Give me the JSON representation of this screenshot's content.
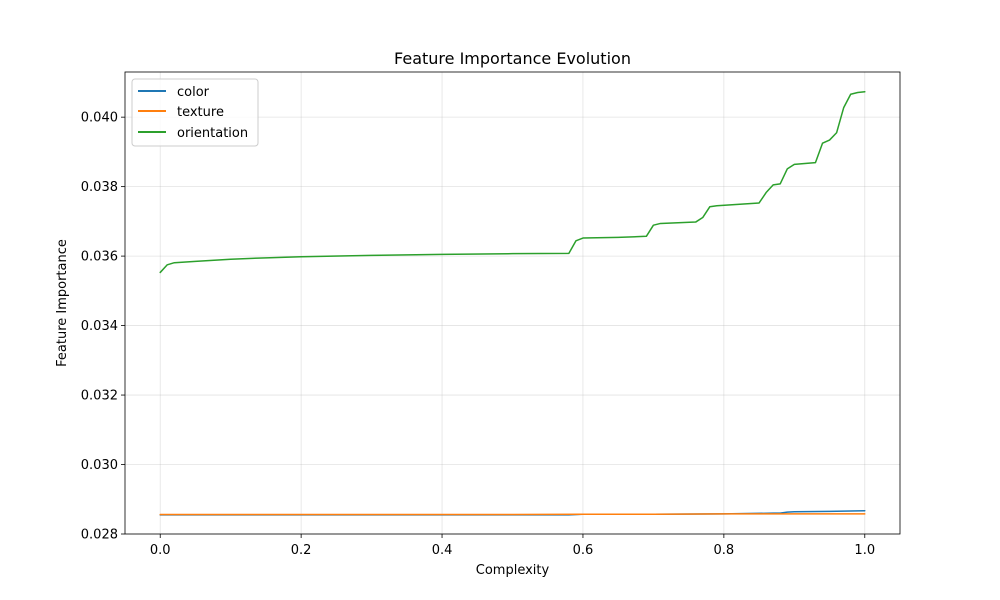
{
  "chart_data": {
    "type": "line",
    "title": "Feature Importance Evolution",
    "xlabel": "Complexity",
    "ylabel": "Feature Importance",
    "xlim": [
      -0.05,
      1.05
    ],
    "ylim": [
      0.028,
      0.0413
    ],
    "xticks": [
      0.0,
      0.2,
      0.4,
      0.6,
      0.8,
      1.0
    ],
    "xtick_labels": [
      "0.0",
      "0.2",
      "0.4",
      "0.6",
      "0.8",
      "1.0"
    ],
    "yticks": [
      0.028,
      0.03,
      0.032,
      0.034,
      0.036,
      0.038,
      0.04
    ],
    "ytick_labels": [
      "0.028",
      "0.030",
      "0.032",
      "0.034",
      "0.036",
      "0.038",
      "0.040"
    ],
    "grid": true,
    "legend_position": "top-left",
    "series": [
      {
        "name": "color",
        "color": "#1f77b4",
        "x": [
          0.0,
          0.1,
          0.2,
          0.3,
          0.4,
          0.5,
          0.58,
          0.6,
          0.7,
          0.8,
          0.87,
          0.88,
          0.89,
          0.9,
          0.95,
          1.0
        ],
        "y": [
          0.02855,
          0.02855,
          0.02855,
          0.02855,
          0.02855,
          0.02855,
          0.02855,
          0.02857,
          0.02857,
          0.02858,
          0.0286,
          0.0286,
          0.02863,
          0.02864,
          0.02865,
          0.02867
        ]
      },
      {
        "name": "texture",
        "color": "#ff7f0e",
        "x": [
          0.0,
          0.1,
          0.2,
          0.3,
          0.4,
          0.5,
          0.6,
          0.7,
          0.8,
          0.9,
          1.0
        ],
        "y": [
          0.02856,
          0.02856,
          0.02856,
          0.02856,
          0.02856,
          0.02856,
          0.02857,
          0.02857,
          0.02858,
          0.02858,
          0.02858
        ]
      },
      {
        "name": "orientation",
        "color": "#2ca02c",
        "x": [
          0.0,
          0.01,
          0.02,
          0.05,
          0.1,
          0.15,
          0.2,
          0.3,
          0.4,
          0.5,
          0.58,
          0.59,
          0.6,
          0.65,
          0.69,
          0.7,
          0.71,
          0.76,
          0.77,
          0.78,
          0.79,
          0.85,
          0.86,
          0.87,
          0.88,
          0.89,
          0.9,
          0.93,
          0.94,
          0.95,
          0.96,
          0.97,
          0.98,
          0.99,
          1.0
        ],
        "y": [
          0.03553,
          0.03575,
          0.03581,
          0.03585,
          0.03591,
          0.03595,
          0.03598,
          0.03602,
          0.03605,
          0.03607,
          0.03608,
          0.03644,
          0.03652,
          0.03654,
          0.03657,
          0.03689,
          0.03694,
          0.03698,
          0.03711,
          0.03742,
          0.03745,
          0.03753,
          0.03783,
          0.03805,
          0.03808,
          0.03851,
          0.03864,
          0.03869,
          0.03925,
          0.03934,
          0.03955,
          0.04027,
          0.04066,
          0.04071,
          0.04073
        ]
      }
    ]
  }
}
